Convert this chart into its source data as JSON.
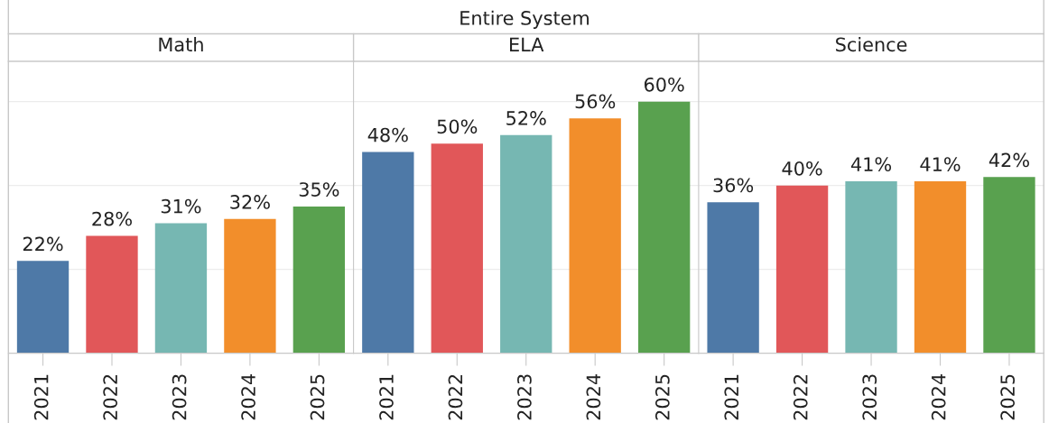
{
  "chart_data": [
    {
      "type": "bar",
      "title": "Math",
      "annotations": [
        "Entire System"
      ],
      "categories": [
        "2021",
        "2022",
        "2023",
        "2024",
        "2025"
      ],
      "values": [
        22,
        28,
        31,
        32,
        35
      ],
      "value_labels": [
        "22%",
        "28%",
        "31%",
        "32%",
        "35%"
      ],
      "colors": [
        "#4e79a7",
        "#e15759",
        "#76b7b2",
        "#f28e2b",
        "#59a14f"
      ],
      "ref_lines": [
        {
          "axis": "y",
          "value": 20,
          "color": "#ececec"
        },
        {
          "axis": "y",
          "value": 40,
          "color": "#ececec"
        },
        {
          "axis": "y",
          "value": 60,
          "color": "#ececec"
        }
      ],
      "tick_labels": "x"
    },
    {
      "type": "bar",
      "title": "ELA",
      "categories": [
        "2021",
        "2022",
        "2023",
        "2024",
        "2025"
      ],
      "values": [
        48,
        50,
        52,
        56,
        60
      ],
      "value_labels": [
        "48%",
        "50%",
        "52%",
        "56%",
        "60%"
      ],
      "colors": [
        "#4e79a7",
        "#e15759",
        "#76b7b2",
        "#f28e2b",
        "#59a14f"
      ],
      "ref_lines": [
        {
          "axis": "y",
          "value": 20,
          "color": "#ececec"
        },
        {
          "axis": "y",
          "value": 40,
          "color": "#ececec"
        },
        {
          "axis": "y",
          "value": 60,
          "color": "#ececec"
        }
      ],
      "tick_labels": "x"
    },
    {
      "type": "bar",
      "title": "Science",
      "categories": [
        "2021",
        "2022",
        "2023",
        "2024",
        "2025"
      ],
      "values": [
        36,
        40,
        41,
        41,
        42
      ],
      "value_labels": [
        "36%",
        "40%",
        "41%",
        "41%",
        "42%"
      ],
      "colors": [
        "#4e79a7",
        "#e15759",
        "#76b7b2",
        "#f28e2b",
        "#59a14f"
      ],
      "ref_lines": [
        {
          "axis": "y",
          "value": 20,
          "color": "#ececec"
        },
        {
          "axis": "y",
          "value": 40,
          "color": "#ececec"
        },
        {
          "axis": "y",
          "value": 60,
          "color": "#ececec"
        }
      ],
      "tick_labels": "x"
    }
  ]
}
